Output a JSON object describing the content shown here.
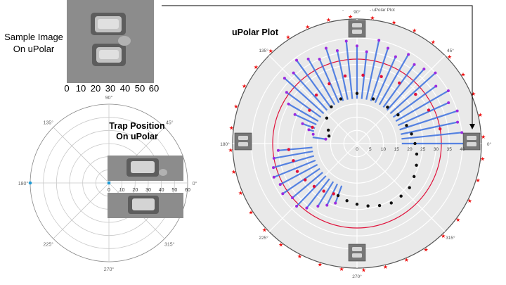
{
  "sample_panel": {
    "label_line1": "Sample Image",
    "label_line2": "On uPolar",
    "x_ticks": [
      "0",
      "10",
      "20",
      "30",
      "40",
      "50",
      "60"
    ]
  },
  "trap_panel": {
    "title_line1": "Trap Position",
    "title_line2": "On uPolar",
    "angle_labels": [
      "90°",
      "45°",
      "0°",
      "315°",
      "270°",
      "225°",
      "180°",
      "135°"
    ],
    "radial_ticks": [
      "0",
      "10",
      "20",
      "30",
      "40",
      "50",
      "60"
    ]
  },
  "upolar_panel": {
    "title": "uPolar Plot",
    "legend_label": "- uPolar Plot",
    "legend_dash": "-",
    "angle_labels": [
      "90°",
      "45°",
      "0°",
      "315°",
      "270°",
      "225°",
      "180°",
      "135°"
    ],
    "radial_ticks": [
      "0",
      "5",
      "10",
      "15",
      "20",
      "25",
      "30",
      "35",
      "40"
    ]
  },
  "colors": {
    "bar": "#3b6fe0",
    "bar_tip": "#9b2be0",
    "mid_points": "#e0103a",
    "inner_points": "#111111",
    "circle": "#e0103a",
    "star": "#ee1111",
    "plot_bg": "#e9e9e9"
  },
  "chart_data": [
    {
      "type": "scatter",
      "subtype": "polar",
      "title": "Trap Position On uPolar",
      "radial_range": [
        0,
        60
      ],
      "radial_ticks": [
        0,
        10,
        20,
        30,
        40,
        50,
        60
      ],
      "angle_ticks_deg": [
        0,
        45,
        90,
        135,
        180,
        225,
        270,
        315
      ],
      "points": [
        {
          "theta_deg": 180,
          "r": 60
        },
        {
          "theta_deg": 0,
          "r": 0
        }
      ],
      "grid": true
    },
    {
      "type": "scatter",
      "subtype": "polar",
      "title": "uPolar Plot",
      "radial_range": [
        0,
        40
      ],
      "radial_ticks": [
        0,
        5,
        10,
        15,
        20,
        25,
        30,
        35,
        40
      ],
      "angle_ticks_deg": [
        0,
        45,
        90,
        135,
        180,
        225,
        270,
        315
      ],
      "grid": true,
      "reference_circle_r": 32,
      "series": [
        {
          "style": "bars",
          "points": [
            {
              "theta_deg": 0,
              "r": 41
            },
            {
              "theta_deg": 6,
              "r": 40
            },
            {
              "theta_deg": 12,
              "r": 39
            },
            {
              "theta_deg": 18,
              "r": 40
            },
            {
              "theta_deg": 24,
              "r": 38
            },
            {
              "theta_deg": 30,
              "r": 40
            },
            {
              "theta_deg": 36,
              "r": 37
            },
            {
              "theta_deg": 42,
              "r": 40
            },
            {
              "theta_deg": 48,
              "r": 38
            },
            {
              "theta_deg": 54,
              "r": 37
            },
            {
              "theta_deg": 60,
              "r": 39
            },
            {
              "theta_deg": 66,
              "r": 36
            },
            {
              "theta_deg": 72,
              "r": 38
            },
            {
              "theta_deg": 78,
              "r": 40
            },
            {
              "theta_deg": 84,
              "r": 35
            },
            {
              "theta_deg": 90,
              "r": 37
            },
            {
              "theta_deg": 96,
              "r": 39
            },
            {
              "theta_deg": 102,
              "r": 36
            },
            {
              "theta_deg": 108,
              "r": 38
            },
            {
              "theta_deg": 114,
              "r": 35
            },
            {
              "theta_deg": 120,
              "r": 37
            },
            {
              "theta_deg": 126,
              "r": 39
            },
            {
              "theta_deg": 132,
              "r": 36
            },
            {
              "theta_deg": 138,
              "r": 37
            },
            {
              "theta_deg": 144,
              "r": 33
            },
            {
              "theta_deg": 150,
              "r": 30
            },
            {
              "theta_deg": 155,
              "r": 26
            },
            {
              "theta_deg": 160,
              "r": 22
            },
            {
              "theta_deg": 164,
              "r": 19
            },
            {
              "theta_deg": 168,
              "r": 17
            },
            {
              "theta_deg": 172,
              "r": 12
            },
            {
              "theta_deg": 185,
              "r": 30
            },
            {
              "theta_deg": 190,
              "r": 32
            },
            {
              "theta_deg": 196,
              "r": 33
            },
            {
              "theta_deg": 202,
              "r": 34
            },
            {
              "theta_deg": 208,
              "r": 33
            },
            {
              "theta_deg": 214,
              "r": 34
            },
            {
              "theta_deg": 220,
              "r": 32
            },
            {
              "theta_deg": 226,
              "r": 33
            },
            {
              "theta_deg": 232,
              "r": 31
            },
            {
              "theta_deg": 238,
              "r": 28
            },
            {
              "theta_deg": 244,
              "r": 26
            },
            {
              "theta_deg": 250,
              "r": 24
            }
          ]
        },
        {
          "style": "points",
          "name": "",
          "points": [
            {
              "theta_deg": 10,
              "r": 32
            },
            {
              "theta_deg": 25,
              "r": 30
            },
            {
              "theta_deg": 40,
              "r": 29
            },
            {
              "theta_deg": 55,
              "r": 28
            },
            {
              "theta_deg": 70,
              "r": 27
            },
            {
              "theta_deg": 85,
              "r": 26
            },
            {
              "theta_deg": 100,
              "r": 26
            },
            {
              "theta_deg": 115,
              "r": 25
            },
            {
              "theta_deg": 130,
              "r": 24
            },
            {
              "theta_deg": 145,
              "r": 22
            },
            {
              "theta_deg": 160,
              "r": 18
            },
            {
              "theta_deg": 185,
              "r": 26
            },
            {
              "theta_deg": 195,
              "r": 25
            },
            {
              "theta_deg": 205,
              "r": 25
            },
            {
              "theta_deg": 215,
              "r": 24
            },
            {
              "theta_deg": 225,
              "r": 23
            },
            {
              "theta_deg": 235,
              "r": 22
            },
            {
              "theta_deg": 245,
              "r": 21
            }
          ]
        },
        {
          "style": "points",
          "name": "",
          "points": [
            {
              "theta_deg": 0,
              "r": 22
            },
            {
              "theta_deg": 10,
              "r": 21
            },
            {
              "theta_deg": 20,
              "r": 20
            },
            {
              "theta_deg": 35,
              "r": 19
            },
            {
              "theta_deg": 50,
              "r": 18
            },
            {
              "theta_deg": 70,
              "r": 18
            },
            {
              "theta_deg": 90,
              "r": 19
            },
            {
              "theta_deg": 110,
              "r": 18
            },
            {
              "theta_deg": 125,
              "r": 17
            },
            {
              "theta_deg": 140,
              "r": 15
            },
            {
              "theta_deg": 155,
              "r": 12
            },
            {
              "theta_deg": 165,
              "r": 11
            },
            {
              "theta_deg": 250,
              "r": 21
            },
            {
              "theta_deg": 260,
              "r": 22
            },
            {
              "theta_deg": 270,
              "r": 23
            },
            {
              "theta_deg": 280,
              "r": 24
            },
            {
              "theta_deg": 290,
              "r": 25
            },
            {
              "theta_deg": 300,
              "r": 26
            },
            {
              "theta_deg": 310,
              "r": 26
            },
            {
              "theta_deg": 320,
              "r": 26
            },
            {
              "theta_deg": 330,
              "r": 25
            },
            {
              "theta_deg": 340,
              "r": 24
            },
            {
              "theta_deg": 350,
              "r": 23
            }
          ]
        }
      ]
    }
  ]
}
